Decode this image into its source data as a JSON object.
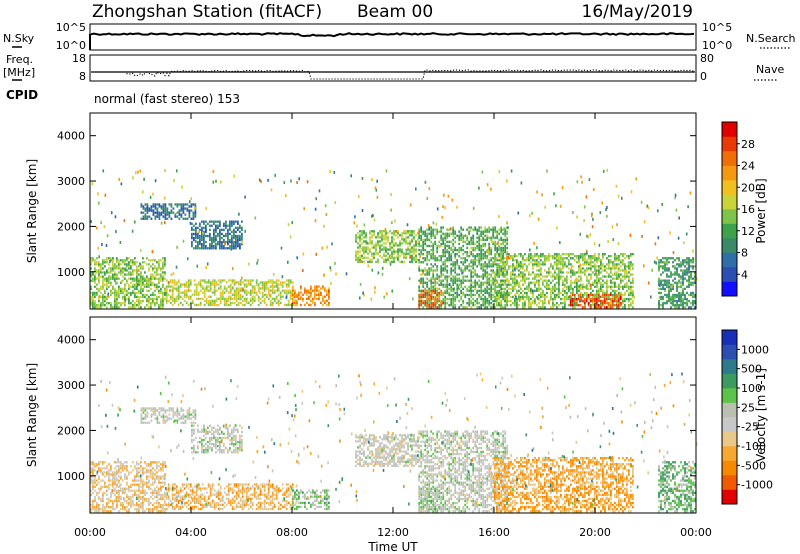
{
  "header": {
    "title": "Zhongshan Station (fitACF)",
    "beam": "Beam 00",
    "date": "16/May/2019"
  },
  "noise": {
    "left_label": "N.Sky",
    "right_label": "N.Search",
    "left_ticks": [
      "10^5",
      "10^0"
    ],
    "right_ticks": [
      "10^5",
      "10^0"
    ]
  },
  "freq": {
    "left_label_1": "Freq.",
    "left_label_2": "[MHz]",
    "right_label": "Nave",
    "left_ticks": [
      "18",
      "8"
    ],
    "right_ticks": [
      "80",
      "0"
    ]
  },
  "cpid": {
    "label": "CPID",
    "mode_text": "normal (fast stereo) 153"
  },
  "chart_data": [
    {
      "type": "heatmap",
      "name": "power-panel",
      "ylabel": "Slant Range [km]",
      "y_ticks": [
        "4000",
        "3000",
        "2000",
        "1000"
      ],
      "y_tick_values": [
        4000,
        3000,
        2000,
        1000
      ],
      "ylim": [
        180,
        4500
      ],
      "xlim": [
        0,
        24
      ],
      "colorbar": {
        "label": "Power [dB]",
        "ticks": [
          "28",
          "24",
          "20",
          "16",
          "12",
          "8",
          "4"
        ],
        "tick_values": [
          28,
          24,
          20,
          16,
          12,
          8,
          4
        ],
        "range": [
          0,
          30
        ],
        "colors": [
          "#1010ff",
          "#2a4fb0",
          "#2f6fa8",
          "#3a8a6a",
          "#3da24a",
          "#7ec34a",
          "#c8d43a",
          "#f0c020",
          "#f59a10",
          "#f06e08",
          "#e83a05",
          "#e00000"
        ]
      },
      "bands": [
        {
          "t0": 0.0,
          "t1": 3.0,
          "r0": 200,
          "r1": 1300,
          "value": 14
        },
        {
          "t0": 2.0,
          "t1": 4.2,
          "r0": 2150,
          "r1": 2500,
          "value": 7
        },
        {
          "t0": 4.0,
          "t1": 6.0,
          "r0": 1500,
          "r1": 2100,
          "value": 7
        },
        {
          "t0": 3.0,
          "t1": 8.0,
          "r0": 250,
          "r1": 800,
          "value": 16
        },
        {
          "t0": 8.0,
          "t1": 9.5,
          "r0": 250,
          "r1": 700,
          "value": 22
        },
        {
          "t0": 10.5,
          "t1": 13.0,
          "r0": 1200,
          "r1": 1900,
          "value": 14
        },
        {
          "t0": 13.0,
          "t1": 16.5,
          "r0": 200,
          "r1": 2000,
          "value": 12
        },
        {
          "t0": 13.0,
          "t1": 14.0,
          "r0": 200,
          "r1": 600,
          "value": 24
        },
        {
          "t0": 16.0,
          "t1": 21.5,
          "r0": 200,
          "r1": 1400,
          "value": 14
        },
        {
          "t0": 19.0,
          "t1": 21.0,
          "r0": 200,
          "r1": 500,
          "value": 26
        },
        {
          "t0": 22.5,
          "t1": 24.0,
          "r0": 200,
          "r1": 1300,
          "value": 10
        }
      ]
    },
    {
      "type": "heatmap",
      "name": "velocity-panel",
      "ylabel": "Slant Range [km]",
      "y_ticks": [
        "4000",
        "3000",
        "2000",
        "1000"
      ],
      "y_tick_values": [
        4000,
        3000,
        2000,
        1000
      ],
      "ylim": [
        180,
        4500
      ],
      "xlabel": "Time UT",
      "x_ticks": [
        "00:00",
        "04:00",
        "08:00",
        "12:00",
        "16:00",
        "20:00",
        "00:00"
      ],
      "x_tick_values": [
        0,
        4,
        8,
        12,
        16,
        20,
        24
      ],
      "xlim": [
        0,
        24
      ],
      "colorbar": {
        "label": "Velocity [m s-1]",
        "ticks": [
          "1000",
          "500",
          "100",
          "25",
          "-25",
          "-100",
          "-500",
          "-1000"
        ],
        "range": [
          -1200,
          1200
        ],
        "colors": [
          "#e00000",
          "#f05a00",
          "#f58a00",
          "#f7a830",
          "#e9c98a",
          "#c8c8c8",
          "#b9c0b0",
          "#5bc24a",
          "#3a9a60",
          "#2e7a8a",
          "#2a4fb0",
          "#1a2fb8"
        ]
      },
      "bands": [
        {
          "t0": 0.0,
          "t1": 3.0,
          "r0": 200,
          "r1": 1300,
          "value": -300
        },
        {
          "t0": 2.0,
          "t1": 4.2,
          "r0": 2150,
          "r1": 2500,
          "value": 0
        },
        {
          "t0": 4.0,
          "t1": 6.0,
          "r0": 1500,
          "r1": 2100,
          "value": 0
        },
        {
          "t0": 3.0,
          "t1": 8.0,
          "r0": 250,
          "r1": 800,
          "value": -400
        },
        {
          "t0": 8.0,
          "t1": 9.5,
          "r0": 250,
          "r1": 700,
          "value": 200
        },
        {
          "t0": 10.5,
          "t1": 13.0,
          "r0": 1200,
          "r1": 1900,
          "value": -50
        },
        {
          "t0": 13.0,
          "t1": 16.5,
          "r0": 200,
          "r1": 2000,
          "value": 10
        },
        {
          "t0": 13.0,
          "t1": 14.0,
          "r0": 200,
          "r1": 700,
          "value": 150
        },
        {
          "t0": 16.0,
          "t1": 21.5,
          "r0": 200,
          "r1": 1400,
          "value": -500
        },
        {
          "t0": 22.5,
          "t1": 24.0,
          "r0": 200,
          "r1": 1300,
          "value": 300
        }
      ]
    }
  ]
}
